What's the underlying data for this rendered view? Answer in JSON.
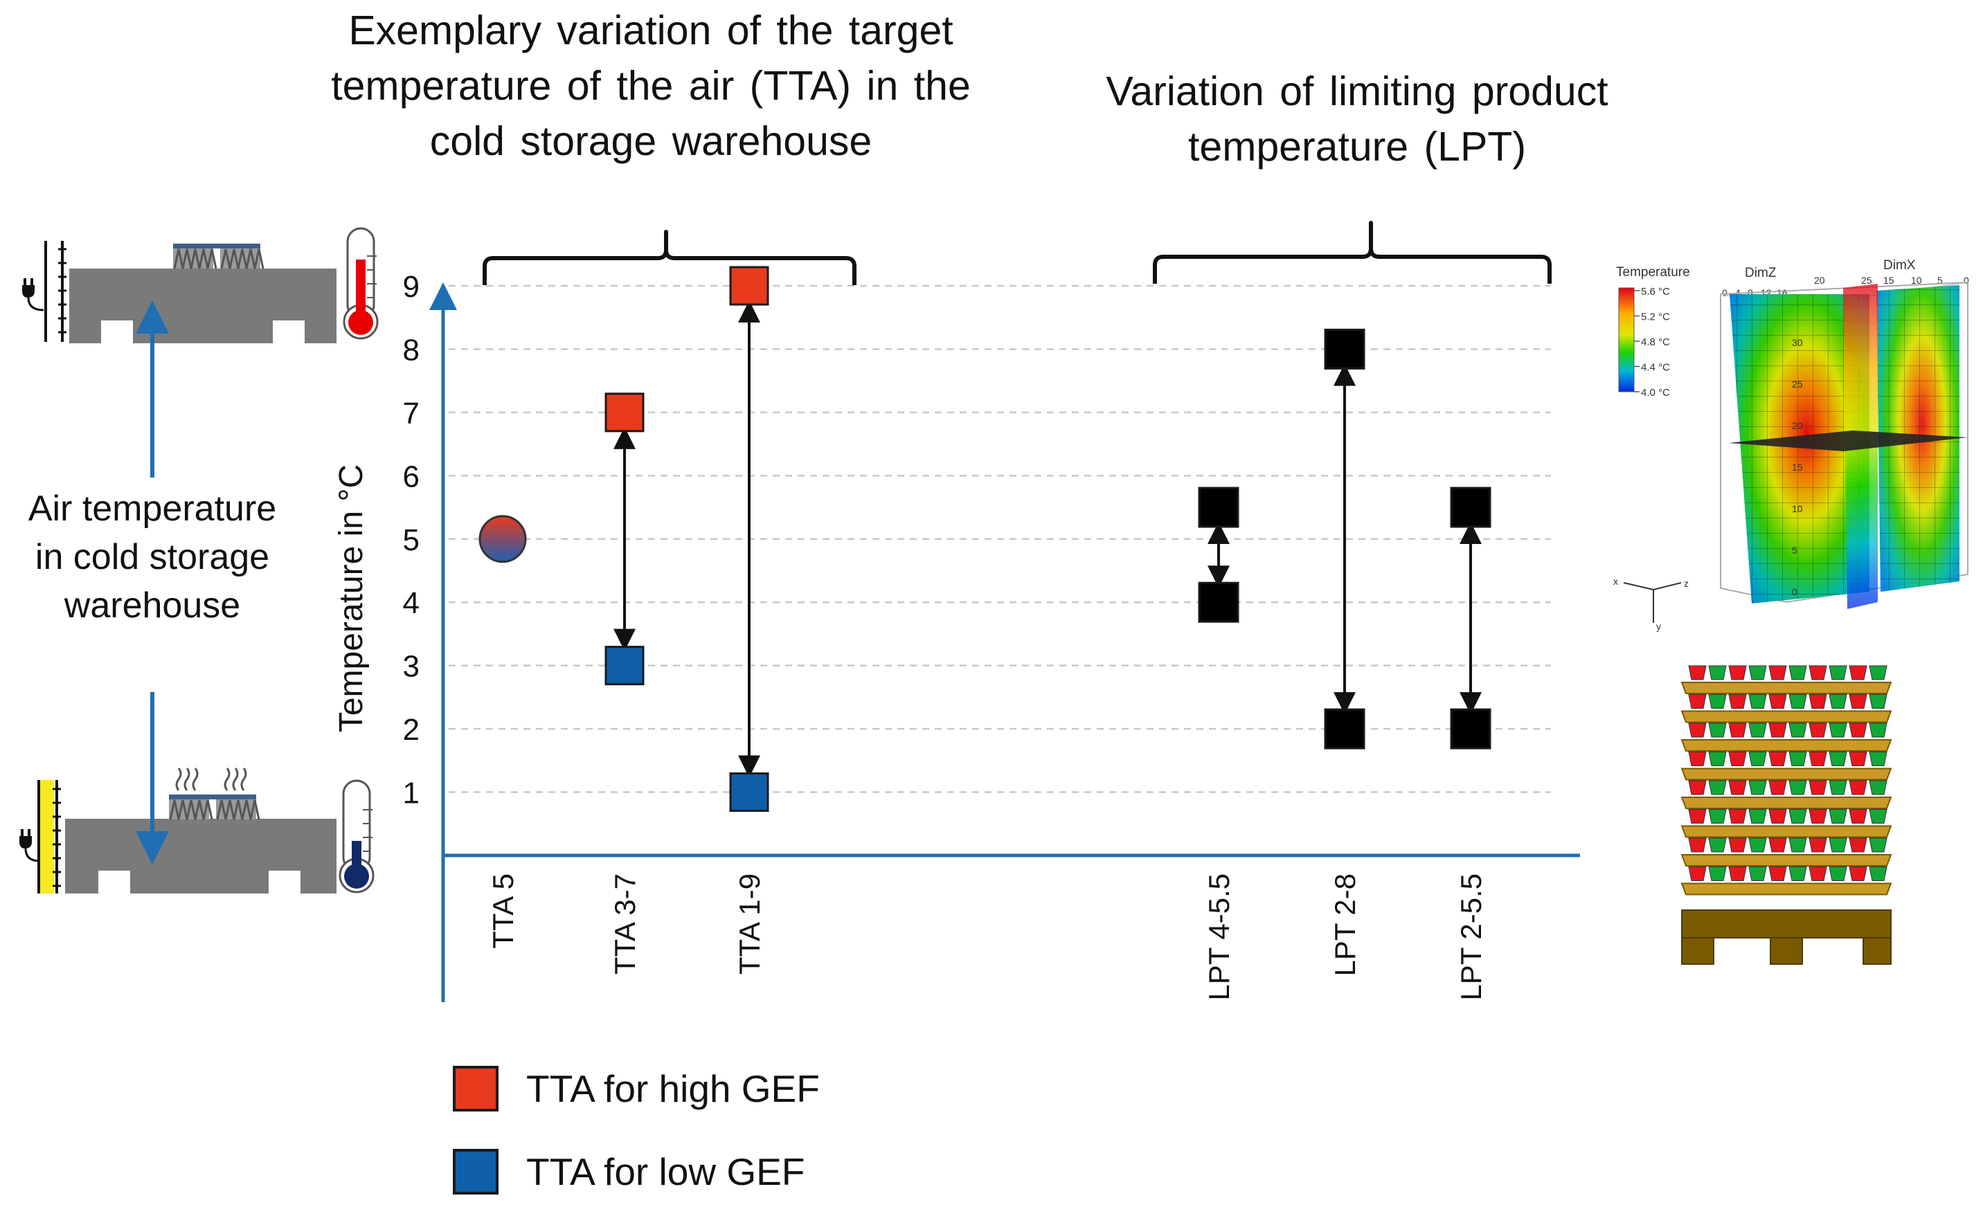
{
  "headings": {
    "tta": "Exemplary variation of the target temperature of the air (TTA) in the cold storage warehouse",
    "lpt": "Variation of limiting product temperature (LPT)"
  },
  "side_label": "Air temperature in cold storage warehouse",
  "legend": [
    {
      "label": "TTA for high GEF",
      "color": "#e83a1c"
    },
    {
      "label": "TTA for low GEF",
      "color": "#0f5fa8"
    }
  ],
  "colors": {
    "axis": "#1f6fb2",
    "high": "#e83a1c",
    "low": "#0f5fa8",
    "lpt": "#000000",
    "warehouse": "#7a7a7a",
    "pallet_wood": "#c99a26",
    "pallet_base": "#7a5a00"
  },
  "chart_data": {
    "type": "scatter",
    "ylabel": "Temperature in °C",
    "ylim": [
      0,
      9
    ],
    "yticks": [
      1,
      2,
      3,
      4,
      5,
      6,
      7,
      8,
      9
    ],
    "grid": true,
    "categories": [
      "TTA 5",
      "TTA 3-7",
      "TTA 1-9",
      "LPT 4-5.5",
      "LPT 2-8",
      "LPT 2-5.5"
    ],
    "series": [
      {
        "name": "TTA for high GEF",
        "points": [
          {
            "x": "TTA 3-7",
            "y": 7
          },
          {
            "x": "TTA 1-9",
            "y": 9
          }
        ]
      },
      {
        "name": "TTA for low GEF",
        "points": [
          {
            "x": "TTA 3-7",
            "y": 3
          },
          {
            "x": "TTA 1-9",
            "y": 1
          }
        ]
      },
      {
        "points": [
          {
            "x": "TTA 5",
            "y": 5
          }
        ]
      },
      {
        "points": [
          {
            "x": "LPT 4-5.5",
            "y": 4
          },
          {
            "x": "LPT 4-5.5",
            "y": 5.5
          },
          {
            "x": "LPT 2-8",
            "y": 2
          },
          {
            "x": "LPT 2-8",
            "y": 8
          },
          {
            "x": "LPT 2-5.5",
            "y": 2
          },
          {
            "x": "LPT 2-5.5",
            "y": 5.5
          }
        ]
      }
    ],
    "ranges": [
      {
        "category": "TTA 3-7",
        "from": 3,
        "to": 7
      },
      {
        "category": "TTA 1-9",
        "from": 1,
        "to": 9
      },
      {
        "category": "LPT 4-5.5",
        "from": 4,
        "to": 5.5
      },
      {
        "category": "LPT 2-8",
        "from": 2,
        "to": 8
      },
      {
        "category": "LPT 2-5.5",
        "from": 2,
        "to": 5.5
      }
    ]
  },
  "heatmap_inset": {
    "legend_title": "Temperature",
    "scale_labels": [
      "5.6 °C",
      "5.2 °C",
      "4.8 °C",
      "4.4 °C",
      "4.0 °C"
    ],
    "axis_labels": [
      "DimZ",
      "DimX"
    ],
    "dimz_ticks": [
      "0",
      "4",
      "8",
      "12",
      "16",
      "20",
      "25"
    ],
    "dimx_ticks": [
      "15",
      "10",
      "5",
      "0"
    ],
    "vertical_ticks": [
      "30",
      "25",
      "20",
      "15",
      "10",
      "5",
      "0"
    ],
    "axes_triad": [
      "x",
      "y",
      "z"
    ]
  }
}
